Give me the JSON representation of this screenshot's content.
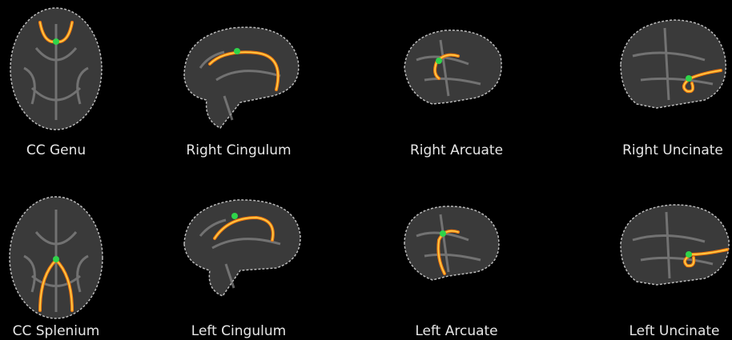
{
  "panels": [
    {
      "label": "CC Genu"
    },
    {
      "label": "Right Cingulum"
    },
    {
      "label": "Right Arcuate"
    },
    {
      "label": "Right Uncinate"
    },
    {
      "label": "CC Splenium"
    },
    {
      "label": "Left Cingulum"
    },
    {
      "label": "Left Arcuate"
    },
    {
      "label": "Left Uncinate"
    }
  ]
}
